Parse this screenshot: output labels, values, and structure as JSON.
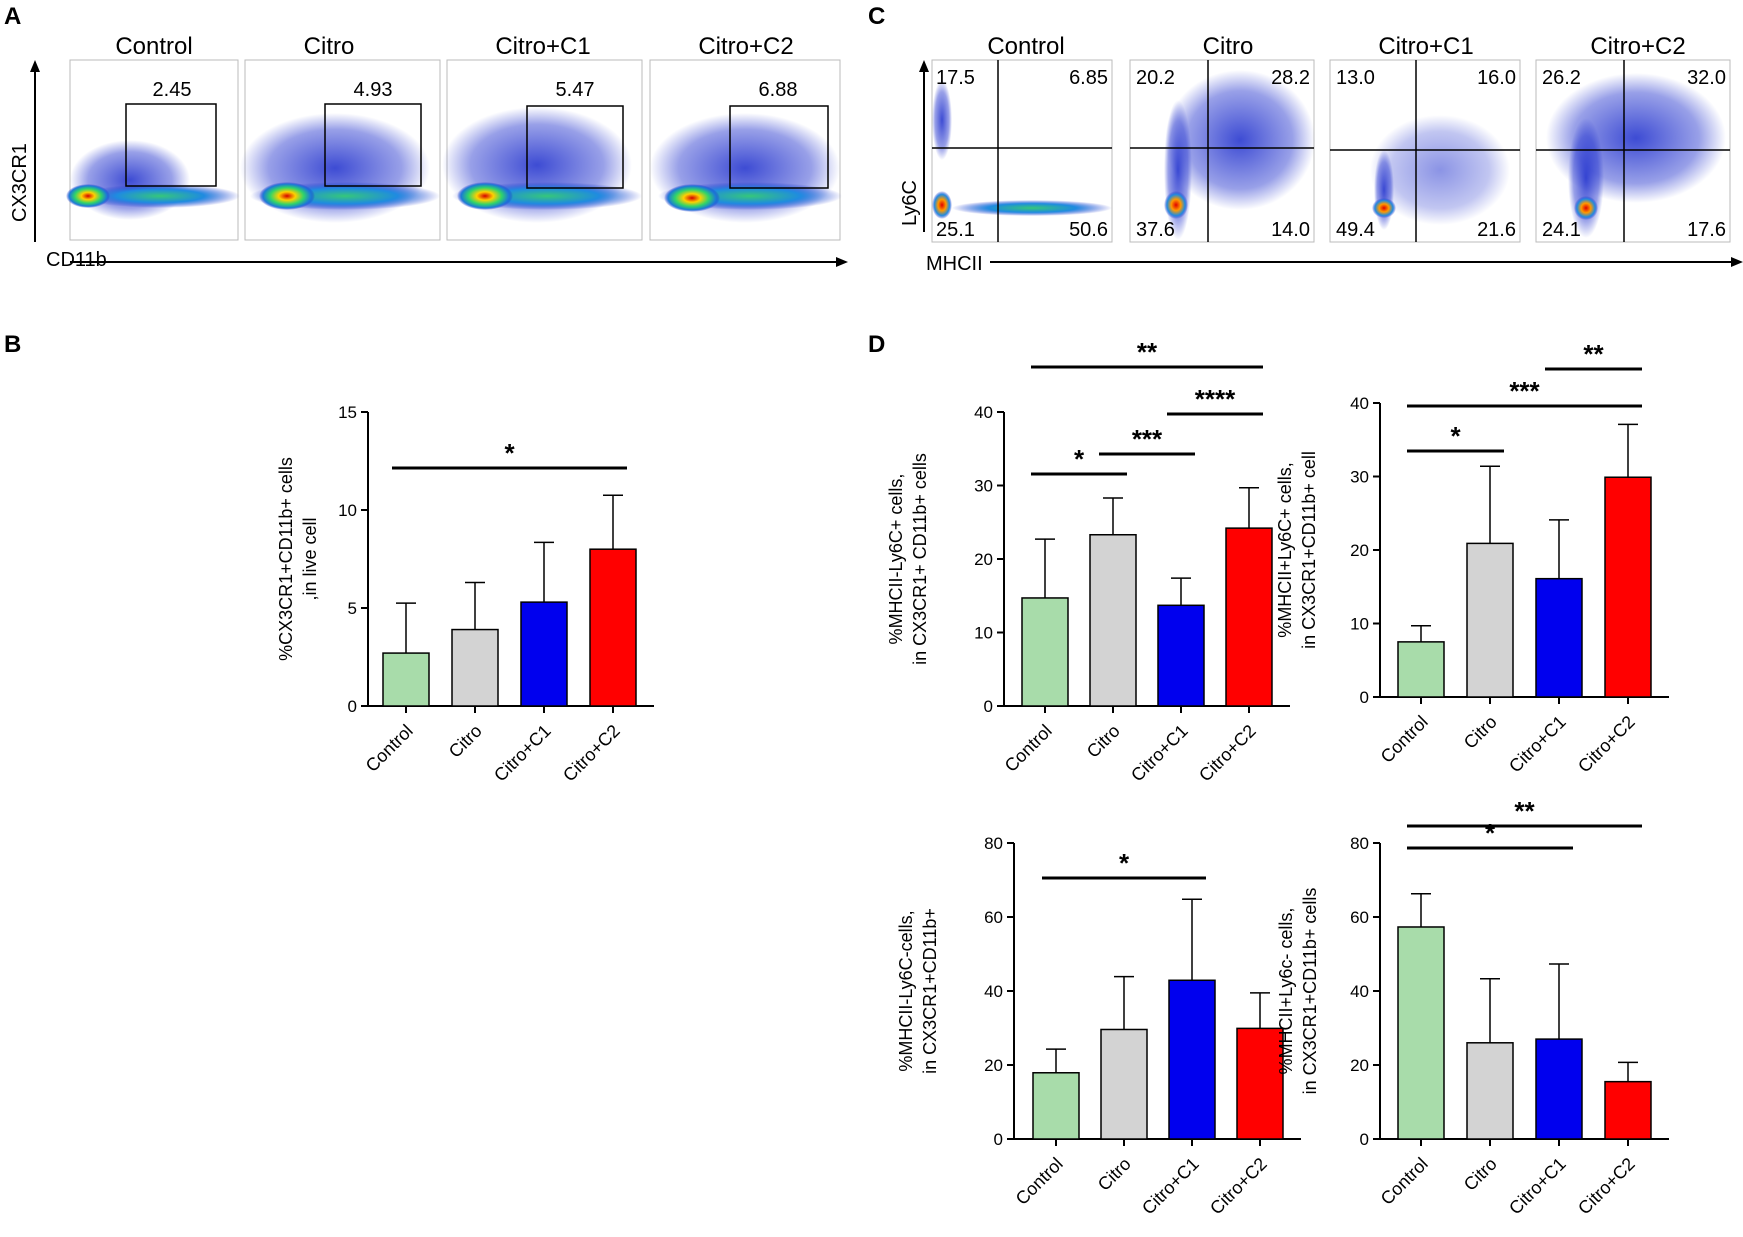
{
  "panels": {
    "A": {
      "label": "A",
      "plots": [
        {
          "title": "Control",
          "gate": "2.45"
        },
        {
          "title": "Citro",
          "gate": "4.93"
        },
        {
          "title": "Citro+C1",
          "gate": "5.47"
        },
        {
          "title": "Citro+C2",
          "gate": "6.88"
        }
      ],
      "ylabel": "CX3CR1",
      "xlabel": "CD11b"
    },
    "C": {
      "label": "C",
      "plots": [
        {
          "title": "Control",
          "q": [
            "17.5",
            "6.85",
            "25.1",
            "50.6"
          ]
        },
        {
          "title": "Citro",
          "q": [
            "20.2",
            "28.2",
            "37.6",
            "14.0"
          ]
        },
        {
          "title": "Citro+C1",
          "q": [
            "13.0",
            "16.0",
            "49.4",
            "21.6"
          ]
        },
        {
          "title": "Citro+C2",
          "q": [
            "26.2",
            "32.0",
            "24.1",
            "17.6"
          ]
        }
      ],
      "ylabel": "Ly6C",
      "xlabel": "MHCII"
    },
    "B": {
      "label": "B"
    },
    "D": {
      "label": "D"
    }
  },
  "colors": {
    "control": "#a8dcaa",
    "citro": "#d3d3d3",
    "c1": "#0000ee",
    "c2": "#ff0000",
    "cells": "#1b2ccc"
  },
  "chart_data": [
    {
      "id": "B",
      "type": "bar",
      "categories": [
        "Control",
        "Citro",
        "Citro+C1",
        "Citro+C2"
      ],
      "values": [
        2.7,
        3.9,
        5.3,
        8.0
      ],
      "errors": [
        2.55,
        2.4,
        3.05,
        2.75
      ],
      "ylabel": [
        "%CX3CR1+CD11b+ cells",
        ",in live cell"
      ],
      "ylim": [
        0,
        15
      ],
      "yticks": [
        0,
        5,
        10,
        15
      ],
      "significance": [
        {
          "from": 0,
          "to": 3,
          "label": "*"
        }
      ]
    },
    {
      "id": "D1",
      "type": "bar",
      "categories": [
        "Control",
        "Citro",
        "Citro+C1",
        "Citro+C2"
      ],
      "values": [
        14.7,
        23.3,
        13.7,
        24.2
      ],
      "errors": [
        8.0,
        5.0,
        3.7,
        5.5
      ],
      "ylabel": [
        "%MHCII-Ly6C+ cells,",
        "in CX3CR1+ CD11b+ cells"
      ],
      "ylim": [
        0,
        40
      ],
      "yticks": [
        0,
        10,
        20,
        30,
        40
      ],
      "significance": [
        {
          "from": 0,
          "to": 1,
          "label": "*"
        },
        {
          "from": 1,
          "to": 2,
          "label": "***"
        },
        {
          "from": 2,
          "to": 3,
          "label": "****"
        },
        {
          "from": 0,
          "to": 3,
          "label": "**"
        }
      ]
    },
    {
      "id": "D2",
      "type": "bar",
      "categories": [
        "Control",
        "Citro",
        "Citro+C1",
        "Citro+C2"
      ],
      "values": [
        7.5,
        20.9,
        16.1,
        29.9
      ],
      "errors": [
        2.2,
        10.5,
        8.0,
        7.2
      ],
      "ylabel": [
        "%MHCII+Ly6C+ cells,",
        "in CX3CR1+CD11b+ cell"
      ],
      "ylim": [
        0,
        40
      ],
      "yticks": [
        0,
        10,
        20,
        30,
        40
      ],
      "significance": [
        {
          "from": 0,
          "to": 1,
          "label": "*"
        },
        {
          "from": 0,
          "to": 3,
          "label": "***"
        },
        {
          "from": 2,
          "to": 3,
          "label": "**"
        }
      ]
    },
    {
      "id": "D3",
      "type": "bar",
      "categories": [
        "Control",
        "Citro",
        "Citro+C1",
        "Citro+C2"
      ],
      "values": [
        17.9,
        29.6,
        42.9,
        29.9
      ],
      "errors": [
        6.4,
        14.3,
        21.9,
        9.6
      ],
      "ylabel": [
        "%MHCII-Ly6C-cells,",
        "in CX3CR1+CD11b+"
      ],
      "ylim": [
        0,
        80
      ],
      "yticks": [
        0,
        20,
        40,
        60,
        80
      ],
      "significance": [
        {
          "from": 0,
          "to": 2,
          "label": "*"
        }
      ]
    },
    {
      "id": "D4",
      "type": "bar",
      "categories": [
        "Control",
        "Citro",
        "Citro+C1",
        "Citro+C2"
      ],
      "values": [
        57.3,
        26.0,
        27.0,
        15.5
      ],
      "errors": [
        9.0,
        17.3,
        20.3,
        5.2
      ],
      "ylabel": [
        "%MHCII+Ly6c- cells,",
        "in CX3CR1+CD11b+ cells"
      ],
      "ylim": [
        0,
        80
      ],
      "yticks": [
        0,
        20,
        40,
        60,
        80
      ],
      "significance": [
        {
          "from": 0,
          "to": 2,
          "label": "*"
        },
        {
          "from": 0,
          "to": 3,
          "label": "**"
        }
      ]
    }
  ]
}
